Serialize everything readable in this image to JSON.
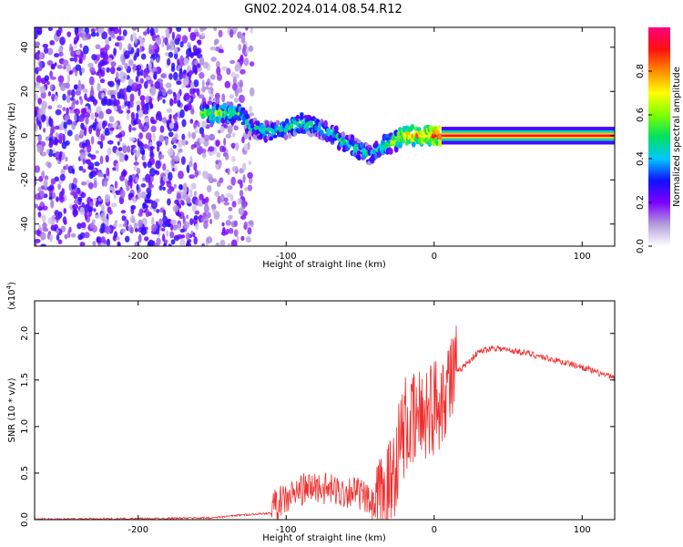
{
  "figure_title": "GN02.2024.014.08.54.R12",
  "chart_data": [
    {
      "type": "heatmap",
      "xlabel": "Height of straight line (km)",
      "ylabel": "Frequency (Hz)",
      "xlim": [
        -270,
        122
      ],
      "ylim": [
        -50,
        49
      ],
      "x_ticks": [
        -200,
        -100,
        0,
        100
      ],
      "x_tick_labels": [
        "-200",
        "-100",
        "0",
        "100"
      ],
      "y_ticks": [
        40,
        20,
        0,
        -20,
        -40
      ],
      "y_tick_labels": [
        "40",
        "20",
        "0",
        "-20",
        "-40"
      ],
      "colorbar": {
        "label": "Normalized spectral amplitude",
        "range": [
          0,
          1
        ],
        "ticks": [
          0.0,
          0.2,
          0.4,
          0.6,
          0.8
        ],
        "tick_labels": [
          "0.0",
          "0.2",
          "0.4",
          "0.6",
          "0.8"
        ],
        "colors": [
          "#ffffff",
          "#b39ddb",
          "#7c00ff",
          "#1010ff",
          "#00c8ff",
          "#00e060",
          "#80ff00",
          "#ffff00",
          "#ff8c00",
          "#ff1010",
          "#ff0080"
        ]
      },
      "noise_region": {
        "x_from": -270,
        "x_to": -157,
        "sparse_to": -123,
        "amplitude": 0.25
      },
      "ridge": {
        "x": [
          -157,
          -150,
          -140,
          -130,
          -125,
          -115,
          -100,
          -90,
          -80,
          -70,
          -60,
          -55,
          -48,
          -42,
          -35,
          -28,
          -20,
          -10,
          0,
          5,
          122
        ],
        "frequency": [
          10,
          10,
          10,
          10,
          4,
          2,
          3,
          6,
          4,
          1,
          -3,
          -5,
          -7,
          -9,
          -5,
          -3,
          0,
          0,
          0,
          0,
          0
        ],
        "amplitude": [
          0.55,
          0.6,
          0.55,
          0.5,
          0.4,
          0.45,
          0.5,
          0.5,
          0.45,
          0.45,
          0.45,
          0.5,
          0.45,
          0.4,
          0.5,
          0.6,
          0.7,
          0.75,
          0.8,
          0.95,
          0.95
        ]
      }
    },
    {
      "type": "line",
      "xlabel": "Height of straight line (km)",
      "ylabel": "SNR (10 * v/v)",
      "y_multiplier_label": "(x10",
      "y_multiplier_exponent": "4",
      "y_multiplier_close": ")",
      "xlim": [
        -270,
        122
      ],
      "ylim": [
        0,
        2.35
      ],
      "x_ticks": [
        -200,
        -100,
        0,
        100
      ],
      "x_tick_labels": [
        "-200",
        "-100",
        "0",
        "100"
      ],
      "y_ticks": [
        0.0,
        0.5,
        1.0,
        1.5,
        2.0
      ],
      "y_tick_labels": [
        "0.0",
        "0.5",
        "1.0",
        "1.5",
        "2.0"
      ],
      "color": "#ee3030",
      "series": [
        {
          "x": [
            -270,
            -200,
            -150,
            -130,
            -110,
            -100,
            -90,
            -80,
            -70,
            -60,
            -55,
            -48,
            -40,
            -30,
            -25,
            -20,
            -15,
            -10,
            -5,
            0,
            10,
            20,
            30,
            40,
            50,
            60,
            70,
            80,
            90,
            100,
            110,
            122
          ],
          "y": [
            0.005,
            0.01,
            0.02,
            0.05,
            0.07,
            0.15,
            0.25,
            0.28,
            0.25,
            0.22,
            0.25,
            0.18,
            0.05,
            0.35,
            0.7,
            1.0,
            1.0,
            1.1,
            1.2,
            1.2,
            1.5,
            1.65,
            1.8,
            1.85,
            1.82,
            1.8,
            1.76,
            1.72,
            1.68,
            1.64,
            1.58,
            1.52
          ]
        }
      ]
    }
  ]
}
